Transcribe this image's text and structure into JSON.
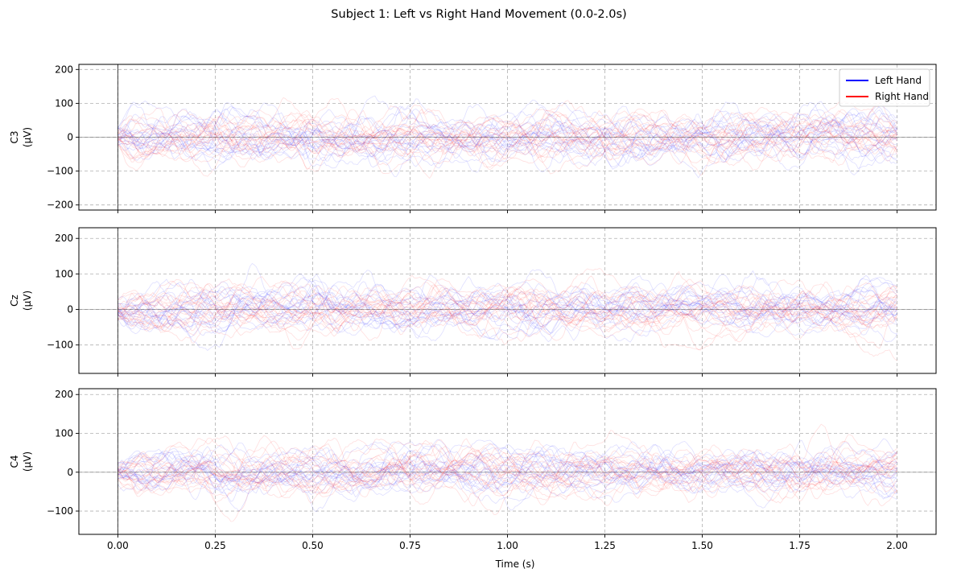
{
  "chart_data": {
    "type": "line",
    "title": "Subject 1: Left vs Right Hand Movement (0.0-2.0s)",
    "xlabel": "Time (s)",
    "xlim": [
      -0.1,
      2.1
    ],
    "xticks": [
      0.0,
      0.25,
      0.5,
      0.75,
      1.0,
      1.25,
      1.5,
      1.75,
      2.0
    ],
    "xtick_labels": [
      "0.00",
      "0.25",
      "0.50",
      "0.75",
      "1.00",
      "1.25",
      "1.50",
      "1.75",
      "2.00"
    ],
    "grid": true,
    "legend": {
      "placement": "top-right",
      "entries": [
        {
          "label": "Left Hand",
          "color": "#0000ff"
        },
        {
          "label": "Right Hand",
          "color": "#ff0000"
        }
      ]
    },
    "colors": {
      "left": "#0000ff",
      "right": "#ff0000"
    },
    "trials_per_class": 20,
    "panels": [
      {
        "channel": "C3",
        "ylabel_line1": "C3",
        "ylabel_line2": "(μV)",
        "ylim": [
          -215,
          215
        ],
        "yticks": [
          -200,
          -100,
          0,
          100,
          200
        ],
        "ytick_labels": [
          "−200",
          "−100",
          "0",
          "100",
          "200"
        ],
        "amplitude_uV": 55,
        "seed": 11
      },
      {
        "channel": "Cz",
        "ylabel_line1": "Cz",
        "ylabel_line2": "(μV)",
        "ylim": [
          -180,
          230
        ],
        "yticks": [
          -100,
          0,
          100,
          200
        ],
        "ytick_labels": [
          "−100",
          "0",
          "100",
          "200"
        ],
        "amplitude_uV": 50,
        "seed": 29
      },
      {
        "channel": "C4",
        "ylabel_line1": "C4",
        "ylabel_line2": "(μV)",
        "ylim": [
          -160,
          215
        ],
        "yticks": [
          -100,
          0,
          100,
          200
        ],
        "ytick_labels": [
          "−100",
          "0",
          "100",
          "200"
        ],
        "amplitude_uV": 45,
        "seed": 47
      }
    ]
  }
}
